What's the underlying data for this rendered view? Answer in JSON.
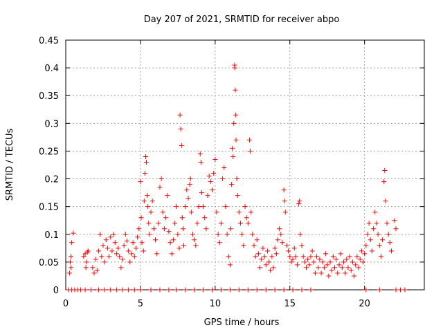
{
  "chart_data": {
    "type": "scatter",
    "title": "Day 207 of 2021, SRMTID for receiver abpo",
    "xlabel": "GPS time / hours",
    "ylabel": "SRMTID / TECUs",
    "xlim": [
      0,
      24
    ],
    "ylim": [
      0,
      0.45
    ],
    "xticks": [
      0,
      5,
      10,
      15,
      20
    ],
    "xtick_labels": [
      "0",
      "5",
      "10",
      "15",
      "20"
    ],
    "yticks": [
      0,
      0.05,
      0.1,
      0.15,
      0.2,
      0.25,
      0.3,
      0.35,
      0.4,
      0.45
    ],
    "ytick_labels": [
      "0",
      "0.05",
      "0.1",
      "0.15",
      "0.2",
      "0.25",
      "0.3",
      "0.35",
      "0.4",
      "0.45"
    ],
    "grid": true,
    "marker": "+",
    "color": "#ff0000",
    "series": [
      {
        "name": "SRMTID",
        "points": [
          [
            0.2,
            0.0
          ],
          [
            0.4,
            0.0
          ],
          [
            0.6,
            0.0
          ],
          [
            0.8,
            0.0
          ],
          [
            1.0,
            0.0
          ],
          [
            1.3,
            0.0
          ],
          [
            1.7,
            0.0
          ],
          [
            2.2,
            0.0
          ],
          [
            2.6,
            0.0
          ],
          [
            3.0,
            0.0
          ],
          [
            3.4,
            0.0
          ],
          [
            3.8,
            0.0
          ],
          [
            4.2,
            0.0
          ],
          [
            4.6,
            0.0
          ],
          [
            5.0,
            0.0
          ],
          [
            5.7,
            0.0
          ],
          [
            6.3,
            0.0
          ],
          [
            6.9,
            0.0
          ],
          [
            7.4,
            0.0
          ],
          [
            8.0,
            0.0
          ],
          [
            8.6,
            0.0
          ],
          [
            9.2,
            0.0
          ],
          [
            9.8,
            0.0
          ],
          [
            10.4,
            0.0
          ],
          [
            11.0,
            0.0
          ],
          [
            11.6,
            0.0
          ],
          [
            12.2,
            0.0
          ],
          [
            12.8,
            0.0
          ],
          [
            13.4,
            0.0
          ],
          [
            14.0,
            0.0
          ],
          [
            14.6,
            0.0
          ],
          [
            15.2,
            0.0
          ],
          [
            15.8,
            0.0
          ],
          [
            16.4,
            0.0
          ],
          [
            20.1,
            0.0
          ],
          [
            21.0,
            0.0
          ],
          [
            22.1,
            0.0
          ],
          [
            22.4,
            0.0
          ],
          [
            22.7,
            0.0
          ],
          [
            0.25,
            0.03
          ],
          [
            0.3,
            0.05
          ],
          [
            0.35,
            0.06
          ],
          [
            0.4,
            0.085
          ],
          [
            0.5,
            0.102
          ],
          [
            0.35,
            0.04
          ],
          [
            1.2,
            0.06
          ],
          [
            1.3,
            0.065
          ],
          [
            1.4,
            0.05
          ],
          [
            1.5,
            0.07
          ],
          [
            1.35,
            0.04
          ],
          [
            1.45,
            0.068
          ],
          [
            1.8,
            0.04
          ],
          [
            1.9,
            0.03
          ],
          [
            2.0,
            0.055
          ],
          [
            2.1,
            0.035
          ],
          [
            2.2,
            0.07
          ],
          [
            2.3,
            0.1
          ],
          [
            2.4,
            0.06
          ],
          [
            2.5,
            0.08
          ],
          [
            2.6,
            0.05
          ],
          [
            2.7,
            0.09
          ],
          [
            2.8,
            0.075
          ],
          [
            2.9,
            0.06
          ],
          [
            3.0,
            0.095
          ],
          [
            3.1,
            0.07
          ],
          [
            3.2,
            0.1
          ],
          [
            3.3,
            0.085
          ],
          [
            3.4,
            0.065
          ],
          [
            3.5,
            0.075
          ],
          [
            3.6,
            0.06
          ],
          [
            3.7,
            0.04
          ],
          [
            3.8,
            0.055
          ],
          [
            3.9,
            0.08
          ],
          [
            4.0,
            0.1
          ],
          [
            4.1,
            0.088
          ],
          [
            4.2,
            0.07
          ],
          [
            4.3,
            0.05
          ],
          [
            4.4,
            0.065
          ],
          [
            4.5,
            0.085
          ],
          [
            4.6,
            0.06
          ],
          [
            4.7,
            0.075
          ],
          [
            4.8,
            0.095
          ],
          [
            4.9,
            0.11
          ],
          [
            5.0,
            0.195
          ],
          [
            5.05,
            0.13
          ],
          [
            5.1,
            0.085
          ],
          [
            5.2,
            0.07
          ],
          [
            5.25,
            0.16
          ],
          [
            5.3,
            0.21
          ],
          [
            5.35,
            0.24
          ],
          [
            5.4,
            0.23
          ],
          [
            5.45,
            0.17
          ],
          [
            5.5,
            0.15
          ],
          [
            5.55,
            0.12
          ],
          [
            5.6,
            0.1
          ],
          [
            5.7,
            0.14
          ],
          [
            5.8,
            0.16
          ],
          [
            5.9,
            0.11
          ],
          [
            6.0,
            0.09
          ],
          [
            6.1,
            0.065
          ],
          [
            6.2,
            0.12
          ],
          [
            6.3,
            0.185
          ],
          [
            6.4,
            0.2
          ],
          [
            6.5,
            0.14
          ],
          [
            6.6,
            0.11
          ],
          [
            6.7,
            0.13
          ],
          [
            6.8,
            0.17
          ],
          [
            6.9,
            0.105
          ],
          [
            7.0,
            0.085
          ],
          [
            7.1,
            0.065
          ],
          [
            7.2,
            0.09
          ],
          [
            7.3,
            0.12
          ],
          [
            7.4,
            0.15
          ],
          [
            7.5,
            0.1
          ],
          [
            7.6,
            0.075
          ],
          [
            7.65,
            0.315
          ],
          [
            7.7,
            0.29
          ],
          [
            7.75,
            0.26
          ],
          [
            7.8,
            0.13
          ],
          [
            7.85,
            0.11
          ],
          [
            7.9,
            0.08
          ],
          [
            8.0,
            0.15
          ],
          [
            8.1,
            0.18
          ],
          [
            8.2,
            0.165
          ],
          [
            8.3,
            0.19
          ],
          [
            8.35,
            0.2
          ],
          [
            8.4,
            0.14
          ],
          [
            8.5,
            0.1
          ],
          [
            8.6,
            0.09
          ],
          [
            8.7,
            0.08
          ],
          [
            8.8,
            0.12
          ],
          [
            8.9,
            0.15
          ],
          [
            9.0,
            0.245
          ],
          [
            9.05,
            0.23
          ],
          [
            9.1,
            0.175
          ],
          [
            9.2,
            0.15
          ],
          [
            9.3,
            0.13
          ],
          [
            9.4,
            0.11
          ],
          [
            9.5,
            0.17
          ],
          [
            9.6,
            0.205
          ],
          [
            9.7,
            0.195
          ],
          [
            9.8,
            0.18
          ],
          [
            9.9,
            0.21
          ],
          [
            10.0,
            0.235
          ],
          [
            10.1,
            0.14
          ],
          [
            10.2,
            0.1
          ],
          [
            10.3,
            0.085
          ],
          [
            10.4,
            0.12
          ],
          [
            10.5,
            0.2
          ],
          [
            10.6,
            0.22
          ],
          [
            10.7,
            0.15
          ],
          [
            10.8,
            0.1
          ],
          [
            10.9,
            0.06
          ],
          [
            11.0,
            0.045
          ],
          [
            11.05,
            0.11
          ],
          [
            11.1,
            0.19
          ],
          [
            11.15,
            0.255
          ],
          [
            11.2,
            0.24
          ],
          [
            11.25,
            0.3
          ],
          [
            11.3,
            0.405
          ],
          [
            11.32,
            0.4
          ],
          [
            11.35,
            0.36
          ],
          [
            11.38,
            0.315
          ],
          [
            11.4,
            0.27
          ],
          [
            11.45,
            0.2
          ],
          [
            11.5,
            0.17
          ],
          [
            11.6,
            0.14
          ],
          [
            11.7,
            0.12
          ],
          [
            11.8,
            0.1
          ],
          [
            11.9,
            0.08
          ],
          [
            12.0,
            0.15
          ],
          [
            12.1,
            0.13
          ],
          [
            12.2,
            0.12
          ],
          [
            12.3,
            0.27
          ],
          [
            12.35,
            0.25
          ],
          [
            12.4,
            0.14
          ],
          [
            12.5,
            0.1
          ],
          [
            12.6,
            0.08
          ],
          [
            12.7,
            0.06
          ],
          [
            12.8,
            0.09
          ],
          [
            12.9,
            0.065
          ],
          [
            13.0,
            0.04
          ],
          [
            13.1,
            0.055
          ],
          [
            13.2,
            0.075
          ],
          [
            13.3,
            0.06
          ],
          [
            13.4,
            0.045
          ],
          [
            13.5,
            0.07
          ],
          [
            13.6,
            0.05
          ],
          [
            13.7,
            0.035
          ],
          [
            13.8,
            0.06
          ],
          [
            13.9,
            0.04
          ],
          [
            14.0,
            0.075
          ],
          [
            14.1,
            0.065
          ],
          [
            14.2,
            0.09
          ],
          [
            14.3,
            0.11
          ],
          [
            14.4,
            0.1
          ],
          [
            14.5,
            0.085
          ],
          [
            14.6,
            0.18
          ],
          [
            14.65,
            0.16
          ],
          [
            14.7,
            0.14
          ],
          [
            14.8,
            0.08
          ],
          [
            14.9,
            0.07
          ],
          [
            15.0,
            0.06
          ],
          [
            15.1,
            0.05
          ],
          [
            15.2,
            0.055
          ],
          [
            15.3,
            0.075
          ],
          [
            15.4,
            0.06
          ],
          [
            15.5,
            0.045
          ],
          [
            15.6,
            0.155
          ],
          [
            15.65,
            0.16
          ],
          [
            15.7,
            0.1
          ],
          [
            15.8,
            0.08
          ],
          [
            15.9,
            0.06
          ],
          [
            16.0,
            0.05
          ],
          [
            16.1,
            0.04
          ],
          [
            16.2,
            0.055
          ],
          [
            16.3,
            0.045
          ],
          [
            16.4,
            0.06
          ],
          [
            16.5,
            0.07
          ],
          [
            16.6,
            0.05
          ],
          [
            16.7,
            0.03
          ],
          [
            16.8,
            0.06
          ],
          [
            16.9,
            0.04
          ],
          [
            17.0,
            0.055
          ],
          [
            17.1,
            0.03
          ],
          [
            17.2,
            0.05
          ],
          [
            17.3,
            0.04
          ],
          [
            17.4,
            0.065
          ],
          [
            17.5,
            0.045
          ],
          [
            17.6,
            0.025
          ],
          [
            17.7,
            0.05
          ],
          [
            17.8,
            0.035
          ],
          [
            17.9,
            0.06
          ],
          [
            18.0,
            0.04
          ],
          [
            18.1,
            0.055
          ],
          [
            18.2,
            0.03
          ],
          [
            18.3,
            0.045
          ],
          [
            18.4,
            0.065
          ],
          [
            18.5,
            0.04
          ],
          [
            18.6,
            0.05
          ],
          [
            18.7,
            0.03
          ],
          [
            18.8,
            0.055
          ],
          [
            18.9,
            0.04
          ],
          [
            19.0,
            0.06
          ],
          [
            19.1,
            0.035
          ],
          [
            19.2,
            0.05
          ],
          [
            19.3,
            0.025
          ],
          [
            19.4,
            0.045
          ],
          [
            19.5,
            0.06
          ],
          [
            19.6,
            0.04
          ],
          [
            19.7,
            0.055
          ],
          [
            19.8,
            0.07
          ],
          [
            19.9,
            0.05
          ],
          [
            20.0,
            0.065
          ],
          [
            20.1,
            0.08
          ],
          [
            20.2,
            0.1
          ],
          [
            20.3,
            0.12
          ],
          [
            20.4,
            0.09
          ],
          [
            20.5,
            0.07
          ],
          [
            20.6,
            0.11
          ],
          [
            20.7,
            0.14
          ],
          [
            20.8,
            0.12
          ],
          [
            20.9,
            0.1
          ],
          [
            21.0,
            0.08
          ],
          [
            21.1,
            0.06
          ],
          [
            21.2,
            0.09
          ],
          [
            21.3,
            0.195
          ],
          [
            21.35,
            0.215
          ],
          [
            21.4,
            0.16
          ],
          [
            21.5,
            0.12
          ],
          [
            21.6,
            0.1
          ],
          [
            21.7,
            0.085
          ],
          [
            21.8,
            0.07
          ],
          [
            22.0,
            0.125
          ],
          [
            22.1,
            0.11
          ]
        ]
      }
    ]
  }
}
